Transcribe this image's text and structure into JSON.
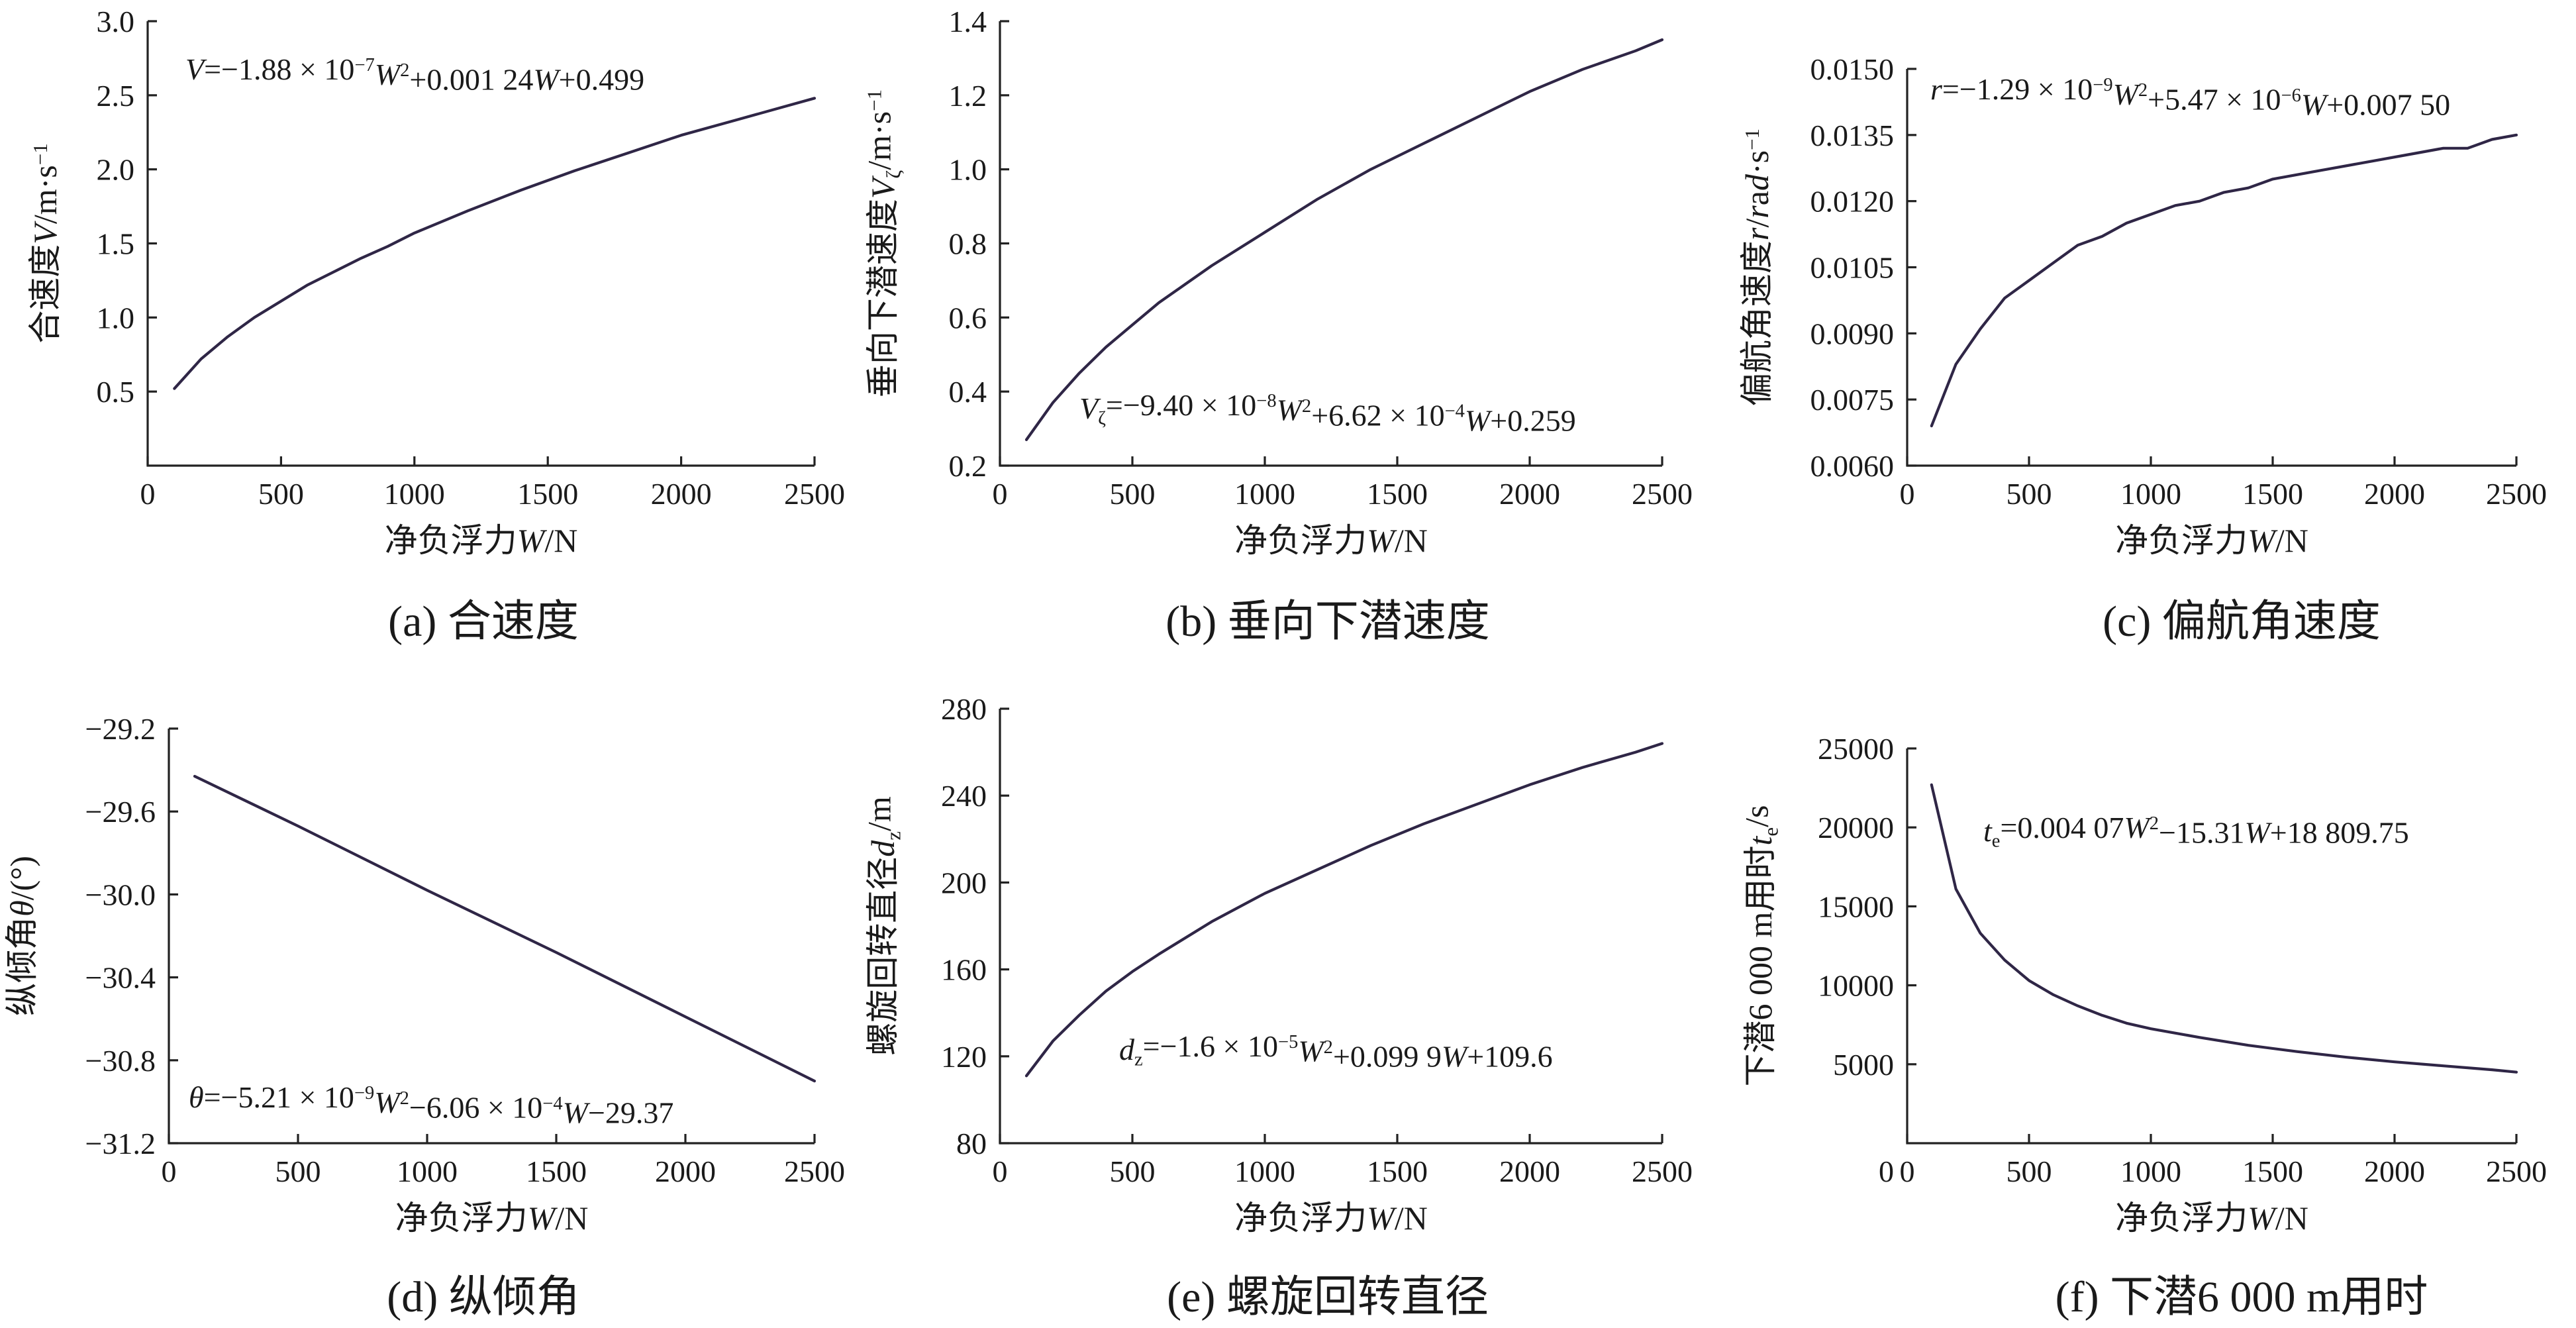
{
  "chart_data": [
    {
      "type": "line",
      "caption": "(a)  合速度",
      "xlabel": "净负浮力W/N",
      "ylabel": "合速度V/m·s⁻¹",
      "equation": "V=−1.88 × 10⁻⁷W²+0.001 24W+0.499",
      "xlim": [
        0,
        2500
      ],
      "ylim": [
        0,
        3.0
      ],
      "xticks": [
        "0",
        "500",
        "1000",
        "1500",
        "2000",
        "2500"
      ],
      "yticks": [
        "0.5",
        "1.0",
        "1.5",
        "2.0",
        "2.5",
        "3.0"
      ],
      "ytick_values": [
        0.5,
        1.0,
        1.5,
        2.0,
        2.5,
        3.0
      ],
      "x": [
        100,
        200,
        300,
        400,
        500,
        600,
        700,
        800,
        900,
        1000,
        1200,
        1400,
        1600,
        1800,
        2000,
        2200,
        2400,
        2500
      ],
      "y": [
        0.52,
        0.72,
        0.87,
        1.0,
        1.11,
        1.22,
        1.31,
        1.4,
        1.48,
        1.57,
        1.72,
        1.86,
        1.99,
        2.11,
        2.23,
        2.33,
        2.43,
        2.48
      ]
    },
    {
      "type": "line",
      "caption": "(b)  垂向下潜速度",
      "xlabel": "净负浮力W/N",
      "ylabel": "垂向下潜速度Vζ/m·s⁻¹",
      "equation": "Vζ=−9.40 × 10⁻⁸W²+6.62 × 10⁻⁴W+0.259",
      "xlim": [
        0,
        2500
      ],
      "ylim": [
        0.2,
        1.4
      ],
      "xticks": [
        "0",
        "500",
        "1000",
        "1500",
        "2000",
        "2500"
      ],
      "yticks": [
        "0.2",
        "0.4",
        "0.6",
        "0.8",
        "1.0",
        "1.2",
        "1.4"
      ],
      "ytick_values": [
        0.2,
        0.4,
        0.6,
        0.8,
        1.0,
        1.2,
        1.4
      ],
      "x": [
        100,
        200,
        300,
        400,
        500,
        600,
        700,
        800,
        1000,
        1200,
        1400,
        1600,
        1800,
        2000,
        2200,
        2400,
        2500
      ],
      "y": [
        0.27,
        0.37,
        0.45,
        0.52,
        0.58,
        0.64,
        0.69,
        0.74,
        0.83,
        0.92,
        1.0,
        1.07,
        1.14,
        1.21,
        1.27,
        1.32,
        1.35
      ]
    },
    {
      "type": "line",
      "caption": "(c)  偏航角速度",
      "xlabel": "净负浮力W/N",
      "ylabel": "偏航角速度r/rad·s⁻¹",
      "equation": "r=−1.29 × 10⁻⁹W²+5.47 × 10⁻⁶W+0.007 50",
      "xlim": [
        0,
        2500
      ],
      "ylim": [
        0.006,
        0.015
      ],
      "xticks": [
        "0",
        "500",
        "1000",
        "1500",
        "2000",
        "2500"
      ],
      "yticks": [
        "0.0060",
        "0.0075",
        "0.0090",
        "0.0105",
        "0.0120",
        "0.0135",
        "0.0150"
      ],
      "ytick_values": [
        0.006,
        0.0075,
        0.009,
        0.0105,
        0.012,
        0.0135,
        0.015
      ],
      "x": [
        100,
        200,
        300,
        400,
        500,
        600,
        700,
        800,
        900,
        1000,
        1100,
        1200,
        1300,
        1400,
        1500,
        1700,
        1900,
        2100,
        2200,
        2300,
        2400,
        2500
      ],
      "y": [
        0.0069,
        0.0083,
        0.0091,
        0.0098,
        0.0102,
        0.0106,
        0.011,
        0.0112,
        0.0115,
        0.0117,
        0.0119,
        0.012,
        0.0122,
        0.0123,
        0.0125,
        0.0127,
        0.0129,
        0.0131,
        0.0132,
        0.0132,
        0.0134,
        0.0135
      ]
    },
    {
      "type": "line",
      "caption": "(d)  纵倾角",
      "xlabel": "净负浮力W/N",
      "ylabel": "纵倾角θ/(°)",
      "equation": "θ=−5.21 × 10⁻⁹W²−6.06 × 10⁻⁴W−29.37",
      "xlim": [
        0,
        2500
      ],
      "ylim": [
        -31.2,
        -29.2
      ],
      "xticks": [
        "0",
        "500",
        "1000",
        "1500",
        "2000",
        "2500"
      ],
      "yticks": [
        "−31.2",
        "−30.8",
        "−30.4",
        "−30.0",
        "−29.6",
        "−29.2"
      ],
      "ytick_values": [
        -31.2,
        -30.8,
        -30.4,
        -30.0,
        -29.6,
        -29.2
      ],
      "x": [
        100,
        500,
        1000,
        1500,
        2000,
        2500
      ],
      "y": [
        -29.43,
        -29.67,
        -29.98,
        -30.28,
        -30.59,
        -30.9
      ]
    },
    {
      "type": "line",
      "caption": "(e)  螺旋回转直径",
      "xlabel": "净负浮力W/N",
      "ylabel": "螺旋回转直径dz/m",
      "equation": "dz=−1.6 × 10⁻⁵W²+0.099 9W+109.6",
      "xlim": [
        0,
        2500
      ],
      "ylim": [
        80,
        280
      ],
      "xticks": [
        "0",
        "500",
        "1000",
        "1500",
        "2000",
        "2500"
      ],
      "yticks": [
        "80",
        "120",
        "160",
        "200",
        "240",
        "280"
      ],
      "ytick_values": [
        80,
        120,
        160,
        200,
        240,
        280
      ],
      "x": [
        100,
        200,
        300,
        400,
        500,
        600,
        800,
        1000,
        1200,
        1400,
        1600,
        1800,
        2000,
        2200,
        2400,
        2500
      ],
      "y": [
        111,
        127,
        139,
        150,
        159,
        167,
        182,
        195,
        206,
        217,
        227,
        236,
        245,
        253,
        260,
        264
      ]
    },
    {
      "type": "line",
      "caption": "(f)  下潜6 000 m用时",
      "xlabel": "净负浮力W/N",
      "ylabel": "下潜6 000 m用时te/s",
      "equation": "te=0.004 07W²−15.31W+18 809.75",
      "xlim": [
        0,
        2500
      ],
      "ylim": [
        0,
        25000
      ],
      "xticks": [
        "0",
        "500",
        "1000",
        "1500",
        "2000",
        "2500"
      ],
      "yticks": [
        "5000",
        "10000",
        "15000",
        "20000",
        "25000"
      ],
      "ytick_values": [
        5000,
        10000,
        15000,
        20000,
        25000
      ],
      "x": [
        100,
        200,
        300,
        400,
        500,
        600,
        700,
        800,
        900,
        1000,
        1200,
        1400,
        1600,
        1800,
        2000,
        2200,
        2400,
        2500
      ],
      "y": [
        22700,
        16100,
        13300,
        11600,
        10300,
        9400,
        8700,
        8100,
        7600,
        7250,
        6700,
        6200,
        5800,
        5450,
        5150,
        4900,
        4650,
        4500
      ]
    }
  ]
}
